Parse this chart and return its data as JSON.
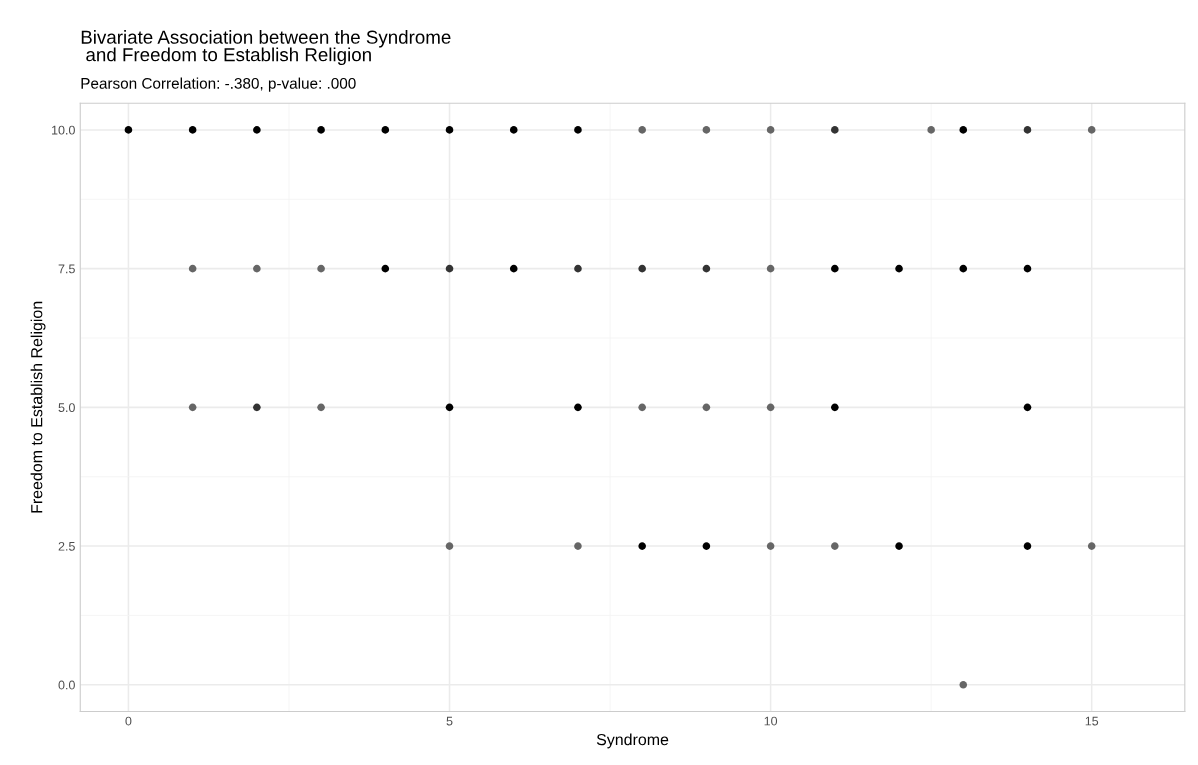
{
  "chart_data": {
    "type": "scatter",
    "title": "Bivariate Association between the Syndrome\n and Freedom to Establish Religion",
    "subtitle": "Pearson Correlation: -.380, p-value: .000",
    "xlabel": "Syndrome",
    "ylabel": "Freedom to Establish Religion",
    "series": [
      {
        "x": [
          0,
          1,
          2,
          3,
          4,
          5,
          6,
          7,
          8,
          9,
          10,
          11,
          12.5,
          13,
          14,
          15,
          1,
          2,
          3,
          4,
          5,
          6,
          7,
          8,
          9,
          10,
          11,
          12,
          13,
          14,
          1,
          2,
          3,
          5,
          7,
          8,
          9,
          10,
          11,
          14,
          5,
          7,
          8,
          9,
          10,
          11,
          12,
          14,
          15,
          13
        ],
        "values": [
          10,
          10,
          10,
          10,
          10,
          10,
          10,
          10,
          10,
          10,
          10,
          10,
          10,
          10,
          10,
          10,
          7.5,
          7.5,
          7.5,
          7.5,
          7.5,
          7.5,
          7.5,
          7.5,
          7.5,
          7.5,
          7.5,
          7.5,
          7.5,
          7.5,
          5,
          5,
          5,
          5,
          5,
          5,
          5,
          5,
          5,
          5,
          2.5,
          2.5,
          2.5,
          2.5,
          2.5,
          2.5,
          2.5,
          2.5,
          2.5,
          0
        ],
        "colors": [
          "#000000",
          "#000000",
          "#000000",
          "#000000",
          "#000000",
          "#000000",
          "#000000",
          "#000000",
          "#666666",
          "#666666",
          "#666666",
          "#333333",
          "#666666",
          "#000000",
          "#333333",
          "#666666",
          "#666666",
          "#666666",
          "#666666",
          "#000000",
          "#333333",
          "#000000",
          "#333333",
          "#333333",
          "#333333",
          "#666666",
          "#000000",
          "#000000",
          "#000000",
          "#000000",
          "#666666",
          "#333333",
          "#666666",
          "#000000",
          "#000000",
          "#666666",
          "#666666",
          "#666666",
          "#000000",
          "#000000",
          "#666666",
          "#666666",
          "#000000",
          "#000000",
          "#666666",
          "#666666",
          "#000000",
          "#000000",
          "#666666",
          "#666666"
        ]
      }
    ],
    "xlim": [
      -0.75,
      16.45
    ],
    "ylim": [
      -0.48,
      10.48
    ],
    "xticks": [
      0,
      5,
      10,
      15
    ],
    "yticks": [
      {
        "value": 0,
        "label": "0.0"
      },
      {
        "value": 2.5,
        "label": "2.5"
      },
      {
        "value": 5,
        "label": "5.0"
      },
      {
        "value": 7.5,
        "label": "7.5"
      },
      {
        "value": 10,
        "label": "10.0"
      }
    ],
    "grid": true,
    "marker": "circle"
  }
}
